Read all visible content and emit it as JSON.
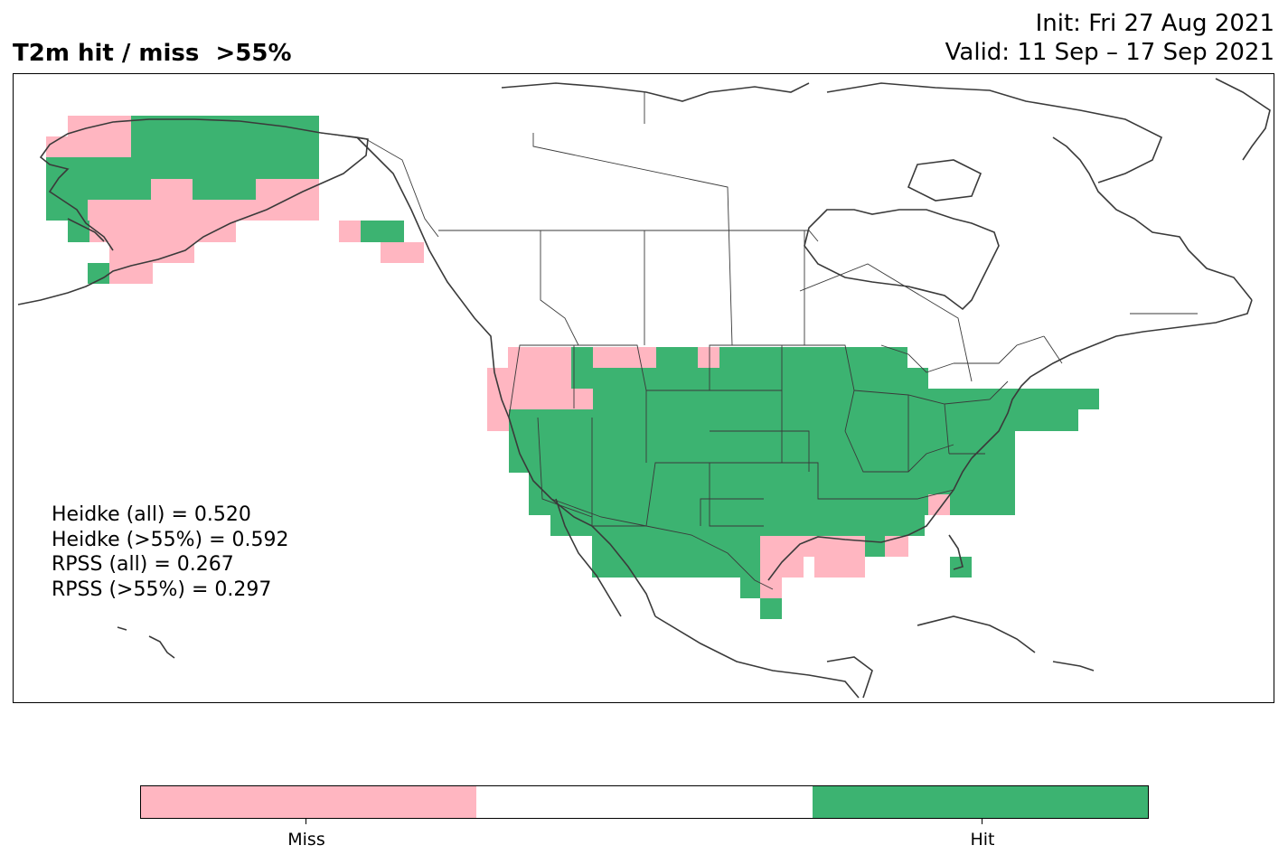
{
  "title": {
    "left": "T2m hit / miss  >55%",
    "init": "Init: Fri 27 Aug 2021",
    "valid": "Valid: 11 Sep – 17 Sep 2021"
  },
  "stats": [
    "Heidke (all) = 0.520",
    "Heidke (>55%) = 0.592",
    "RPSS (all) = 0.267",
    "RPSS (>55%) = 0.297"
  ],
  "legend": {
    "miss_label": "Miss",
    "hit_label": "Hit",
    "miss_color": "#ffb6c1",
    "neutral_color": "#ffffff",
    "hit_color": "#3cb371"
  },
  "map": {
    "coastline_color": "#3a3a3a",
    "border_color": "#3a3a3a"
  }
}
